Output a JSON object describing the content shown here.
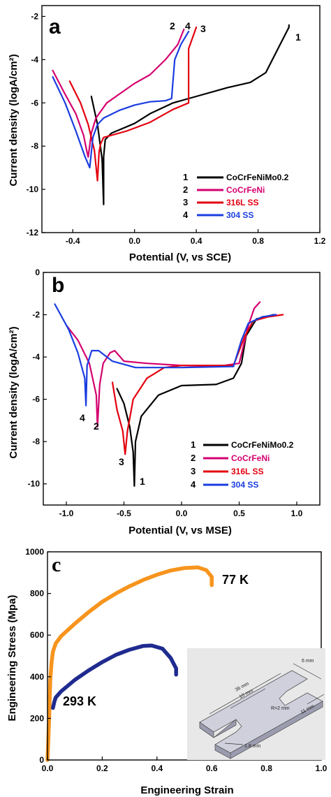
{
  "chart_data": [
    {
      "panel": "a",
      "type": "line",
      "xlabel": "Potential (V, vs SCE)",
      "ylabel": "Current density (logA/cm²)",
      "xlim": [
        -0.6,
        1.2
      ],
      "ylim": [
        -12,
        -1.5
      ],
      "xticks": [
        -0.4,
        0.0,
        0.4,
        0.8,
        1.2
      ],
      "xtick_labels": [
        "-0.4",
        "0.0",
        "0.4",
        "0.8",
        "1.2"
      ],
      "yticks": [
        -2,
        -4,
        -6,
        -8,
        -10,
        -12
      ],
      "ytick_labels": [
        "-2",
        "-4",
        "-6",
        "-8",
        "-10",
        "-12"
      ],
      "legend_position": "bottom-right",
      "series": [
        {
          "name": "CoCrFeNiMo0.2",
          "number": "1",
          "color": "#000000",
          "x": [
            -0.28,
            -0.24,
            -0.21,
            -0.2,
            -0.2,
            -0.19,
            -0.15,
            -0.1,
            0.0,
            0.1,
            0.25,
            0.4,
            0.6,
            0.75,
            0.85,
            0.95,
            1.0,
            1.0
          ],
          "y": [
            -5.7,
            -7.0,
            -8.6,
            -10.7,
            -8.5,
            -7.7,
            -7.4,
            -7.25,
            -6.95,
            -6.5,
            -6.0,
            -5.7,
            -5.3,
            -5.05,
            -4.6,
            -3.2,
            -2.5,
            -2.4
          ]
        },
        {
          "name": "CoCrFeNi",
          "number": "2",
          "color": "#d4006f",
          "x": [
            -0.53,
            -0.45,
            -0.38,
            -0.33,
            -0.31,
            -0.3,
            -0.28,
            -0.25,
            -0.18,
            -0.1,
            0.0,
            0.1,
            0.2,
            0.28,
            0.32
          ],
          "y": [
            -4.5,
            -5.6,
            -6.5,
            -7.5,
            -8.2,
            -8.5,
            -7.4,
            -6.7,
            -6.0,
            -5.6,
            -5.1,
            -4.7,
            -4.0,
            -3.3,
            -2.6
          ]
        },
        {
          "name": "316L SS",
          "number": "3",
          "color": "#e3000f",
          "x": [
            -0.42,
            -0.35,
            -0.3,
            -0.26,
            -0.24,
            -0.23,
            -0.22,
            -0.2,
            -0.15,
            -0.05,
            0.1,
            0.25,
            0.35,
            0.35,
            0.4
          ],
          "y": [
            -5.0,
            -6.0,
            -7.0,
            -8.2,
            -9.6,
            -8.3,
            -7.9,
            -7.6,
            -7.5,
            -7.3,
            -6.9,
            -6.3,
            -6.0,
            -3.5,
            -2.5
          ]
        },
        {
          "name": "304 SS",
          "number": "4",
          "color": "#1a3de0",
          "x": [
            -0.53,
            -0.45,
            -0.38,
            -0.32,
            -0.29,
            -0.27,
            -0.24,
            -0.2,
            -0.1,
            0.0,
            0.1,
            0.2,
            0.24,
            0.26,
            0.3,
            0.35
          ],
          "y": [
            -4.8,
            -6.0,
            -7.3,
            -8.5,
            -9.0,
            -7.6,
            -7.0,
            -6.7,
            -6.35,
            -6.1,
            -5.95,
            -5.9,
            -5.8,
            -4.0,
            -3.3,
            -2.7
          ]
        }
      ]
    },
    {
      "panel": "b",
      "type": "line",
      "xlabel": "Potential (V, vs MSE)",
      "ylabel": "Current density (logA/cm²)",
      "xlim": [
        -1.2,
        1.2
      ],
      "ylim": [
        -11,
        0
      ],
      "xticks": [
        -1.0,
        -0.5,
        0.0,
        0.5,
        1.0
      ],
      "xtick_labels": [
        "-1.0",
        "-0.5",
        "0.0",
        "0.5",
        "1.0"
      ],
      "yticks": [
        0,
        -2,
        -4,
        -6,
        -8,
        -10
      ],
      "ytick_labels": [
        "0",
        "-2",
        "-4",
        "-6",
        "-8",
        "-10"
      ],
      "legend_position": "bottom-right",
      "series": [
        {
          "name": "CoCrFeNiMo0.2",
          "number": "1",
          "color": "#000000",
          "x": [
            -0.56,
            -0.5,
            -0.45,
            -0.42,
            -0.41,
            -0.4,
            -0.35,
            -0.2,
            0.0,
            0.3,
            0.45,
            0.52,
            0.56,
            0.65,
            0.8
          ],
          "y": [
            -5.5,
            -6.2,
            -7.3,
            -8.5,
            -10.1,
            -8.0,
            -6.8,
            -5.8,
            -5.35,
            -5.3,
            -5.0,
            -4.3,
            -3.0,
            -2.2,
            -2.0
          ]
        },
        {
          "name": "CoCrFeNi",
          "number": "2",
          "color": "#d4006f",
          "x": [
            -1.0,
            -0.9,
            -0.8,
            -0.74,
            -0.73,
            -0.71,
            -0.68,
            -0.62,
            -0.58,
            -0.5,
            -0.3,
            0.0,
            0.3,
            0.5,
            0.58,
            0.63,
            0.68
          ],
          "y": [
            -2.5,
            -3.2,
            -4.3,
            -5.8,
            -7.3,
            -5.3,
            -4.3,
            -3.8,
            -3.7,
            -4.2,
            -4.3,
            -4.4,
            -4.45,
            -4.3,
            -2.5,
            -1.7,
            -1.4
          ]
        },
        {
          "name": "316L SS",
          "number": "3",
          "color": "#e3000f",
          "x": [
            -0.6,
            -0.56,
            -0.51,
            -0.49,
            -0.47,
            -0.42,
            -0.3,
            -0.15,
            0.0,
            0.2,
            0.45,
            0.55,
            0.62,
            0.75,
            0.88
          ],
          "y": [
            -5.2,
            -6.5,
            -7.5,
            -8.6,
            -7.5,
            -6.0,
            -5.0,
            -4.5,
            -4.4,
            -4.4,
            -4.4,
            -3.0,
            -2.3,
            -2.1,
            -2.0
          ]
        },
        {
          "name": "304 SS",
          "number": "4",
          "color": "#1a3de0",
          "x": [
            -1.1,
            -0.98,
            -0.9,
            -0.84,
            -0.83,
            -0.82,
            -0.78,
            -0.72,
            -0.6,
            -0.4,
            0.0,
            0.45,
            0.52,
            0.58,
            0.7,
            0.82
          ],
          "y": [
            -1.5,
            -2.7,
            -3.8,
            -5.0,
            -6.3,
            -4.4,
            -3.7,
            -3.7,
            -4.2,
            -4.5,
            -4.5,
            -4.45,
            -3.2,
            -2.4,
            -2.1,
            -2.0
          ]
        }
      ]
    },
    {
      "panel": "c",
      "type": "line",
      "xlabel": "Engineering Strain",
      "ylabel": "Engineering Stress (Mpa)",
      "xlim": [
        0,
        1.0
      ],
      "ylim": [
        0,
        1000
      ],
      "xticks": [
        0.0,
        0.2,
        0.4,
        0.6,
        0.8,
        1.0
      ],
      "xtick_labels": [
        "0.0",
        "0.2",
        "0.4",
        "0.6",
        "0.8",
        "1.0"
      ],
      "yticks": [
        0,
        200,
        400,
        600,
        800,
        1000
      ],
      "ytick_labels": [
        "0",
        "200",
        "400",
        "600",
        "800",
        "1000"
      ],
      "series": [
        {
          "name": "77 K",
          "color": "#f7941d",
          "x": [
            0.0,
            0.006,
            0.01,
            0.015,
            0.02,
            0.03,
            0.05,
            0.1,
            0.15,
            0.2,
            0.25,
            0.3,
            0.35,
            0.4,
            0.45,
            0.5,
            0.55,
            0.58,
            0.6,
            0.6
          ],
          "y": [
            0,
            200,
            380,
            470,
            520,
            560,
            595,
            655,
            710,
            760,
            800,
            835,
            865,
            890,
            910,
            922,
            925,
            912,
            880,
            840
          ]
        },
        {
          "name": "293 K",
          "color": "#1f2b8f",
          "x": [
            0.02,
            0.025,
            0.03,
            0.05,
            0.1,
            0.15,
            0.2,
            0.25,
            0.3,
            0.35,
            0.38,
            0.42,
            0.45,
            0.47,
            0.47
          ],
          "y": [
            250,
            280,
            300,
            330,
            385,
            430,
            470,
            505,
            530,
            548,
            550,
            535,
            490,
            440,
            410
          ]
        }
      ]
    }
  ],
  "panels": {
    "a": {
      "letter": "a",
      "legend": [
        {
          "num": "1",
          "label": "CoCrFeNiMo0.2",
          "color": "#000000"
        },
        {
          "num": "2",
          "label": "CoCrFeNi",
          "color": "#d4006f"
        },
        {
          "num": "3",
          "label": "316L SS",
          "color": "#e3000f"
        },
        {
          "num": "4",
          "label": "304 SS",
          "color": "#1a3de0"
        }
      ],
      "curve_numbers": [
        "1",
        "2",
        "3",
        "4"
      ]
    },
    "b": {
      "letter": "b",
      "legend": [
        {
          "num": "1",
          "label": "CoCrFeNiMo0.2",
          "color": "#000000"
        },
        {
          "num": "2",
          "label": "CoCrFeNi",
          "color": "#d4006f"
        },
        {
          "num": "3",
          "label": "316L SS",
          "color": "#e3000f"
        },
        {
          "num": "4",
          "label": "304 SS",
          "color": "#1a3de0"
        }
      ],
      "curve_numbers": [
        "1",
        "2",
        "3",
        "4"
      ]
    },
    "c": {
      "letter": "c",
      "series_labels": [
        "77 K",
        "293 K"
      ],
      "inset": {
        "labels": [
          "6 mm",
          "36 mm",
          "10 mm",
          "R=2 mm",
          "11 mm",
          "1.8 mm"
        ]
      }
    }
  }
}
